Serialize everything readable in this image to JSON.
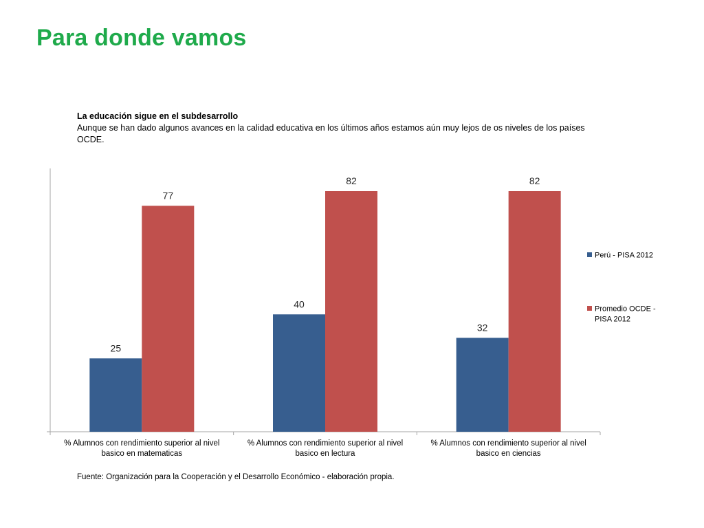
{
  "page": {
    "title": "Para donde vamos",
    "intro_heading": "La educación sigue en el subdesarrollo",
    "intro_body": "Aunque se han dado algunos avances en la calidad educativa en los últimos años estamos aún muy lejos de os niveles de los países OCDE.",
    "source": "Fuente: Organización para la Cooperación y el Desarrollo Económico - elaboración propia."
  },
  "chart_data": {
    "type": "bar",
    "categories": [
      [
        "% Alumnos con rendimiento superior al nivel",
        "basico en matematicas"
      ],
      [
        "% Alumnos con rendimiento superior al nivel",
        "basico en lectura"
      ],
      [
        "% Alumnos con rendimiento superior al nivel",
        "basico en ciencias"
      ]
    ],
    "series": [
      {
        "name": "Perú  - PISA 2012",
        "legend_lines": [
          "Perú  - PISA 2012"
        ],
        "color": "#375e8f",
        "values": [
          25,
          40,
          32
        ]
      },
      {
        "name": "Promedio OCDE - PISA 2012",
        "legend_lines": [
          "Promedio OCDE -",
          "PISA 2012"
        ],
        "color": "#c0504d",
        "values": [
          77,
          82,
          82
        ]
      }
    ],
    "ylim": [
      0,
      82
    ],
    "grid": false,
    "legend_position": "right",
    "data_labels": true
  }
}
